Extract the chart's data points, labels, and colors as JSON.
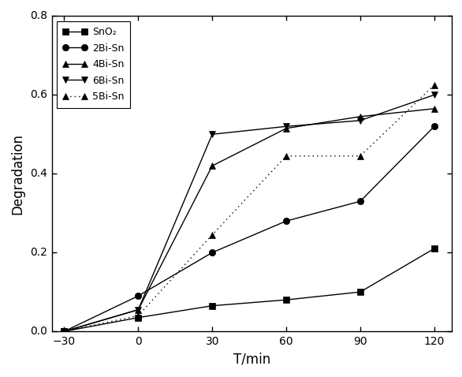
{
  "x": [
    -30,
    0,
    30,
    60,
    90,
    120
  ],
  "series": {
    "SnO2": [
      0.0,
      0.035,
      0.065,
      0.08,
      0.1,
      0.21
    ],
    "2Bi-Sn": [
      0.0,
      0.09,
      0.2,
      0.28,
      0.33,
      0.52
    ],
    "4Bi-Sn": [
      0.0,
      0.055,
      0.42,
      0.515,
      0.545,
      0.565
    ],
    "6Bi-Sn": [
      0.0,
      0.055,
      0.5,
      0.52,
      0.535,
      0.6
    ],
    "5Bi-Sn": [
      0.0,
      0.04,
      0.245,
      0.445,
      0.445,
      0.625
    ]
  },
  "markers": {
    "SnO2": "s",
    "2Bi-Sn": "o",
    "4Bi-Sn": "^",
    "6Bi-Sn": "v",
    "5Bi-Sn": "^"
  },
  "linestyles": {
    "SnO2": "-",
    "2Bi-Sn": "-",
    "4Bi-Sn": "-",
    "6Bi-Sn": "-",
    "5Bi-Sn": ":"
  },
  "xlabel": "T/min",
  "ylabel": "Degradation",
  "xlim": [
    -35,
    127
  ],
  "ylim": [
    0.0,
    0.8
  ],
  "xticks": [
    -30,
    0,
    30,
    60,
    90,
    120
  ],
  "yticks": [
    0.0,
    0.2,
    0.4,
    0.6,
    0.8
  ],
  "legend_labels": [
    "SnO₂",
    "2Bi-Sn",
    "4Bi-Sn",
    "6Bi-Sn",
    "5Bi-Sn"
  ],
  "markersize": 6,
  "linewidth": 1.0
}
